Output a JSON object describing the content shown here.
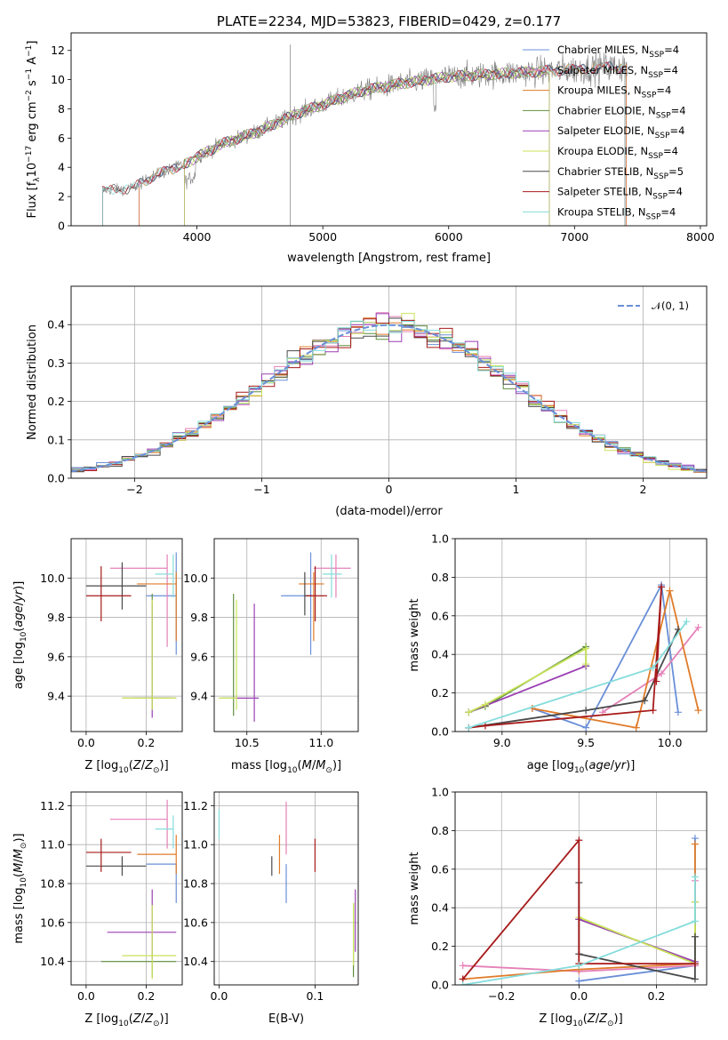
{
  "colors": {
    "Chabrier MILES": "#6a8fd8",
    "Salpeter MILES": "#e580b8",
    "Kroupa MILES": "#e07b28",
    "Chabrier ELODIE": "#5f8f3f",
    "Salpeter ELODIE": "#9a3fb3",
    "Kroupa ELODIE": "#c9e35a",
    "Chabrier STELIB": "#4a4a4a",
    "Salpeter STELIB": "#a71a1a",
    "Kroupa STELIB": "#86dcdc"
  },
  "chart_data": [
    {
      "id": "spectrum",
      "type": "line",
      "title": "PLATE=2234, MJD=53823, FIBERID=0429, z=0.177",
      "xlabel": "wavelength [Angstrom, rest frame]",
      "ylabel": "Flux [f_λ10^-17 erg cm^-2 s^-1 A^-1]",
      "xlim": [
        3000,
        8050
      ],
      "ylim": [
        0,
        13.2
      ],
      "xticks": [
        4000,
        5000,
        6000,
        7000,
        8000
      ],
      "yticks": [
        0,
        2,
        4,
        6,
        8,
        10,
        12
      ],
      "grid": false,
      "legend_position": "top-right",
      "data_color": "#7f7f7f",
      "data_range": [
        3250,
        7420
      ],
      "continuum": [
        [
          3250,
          2.4
        ],
        [
          3500,
          2.6
        ],
        [
          3650,
          3.4
        ],
        [
          3900,
          4.2
        ],
        [
          4000,
          4.7
        ],
        [
          4200,
          5.6
        ],
        [
          4500,
          6.5
        ],
        [
          4800,
          7.7
        ],
        [
          5000,
          8.3
        ],
        [
          5300,
          9.2
        ],
        [
          5600,
          9.7
        ],
        [
          6000,
          10.2
        ],
        [
          6400,
          10.4
        ],
        [
          7000,
          10.7
        ],
        [
          7400,
          10.9
        ]
      ],
      "legend": [
        {
          "name": "Chabrier MILES",
          "nssp": "4"
        },
        {
          "name": "Salpeter MILES",
          "nssp": "4"
        },
        {
          "name": "Kroupa MILES",
          "nssp": "4"
        },
        {
          "name": "Chabrier ELODIE",
          "nssp": "4"
        },
        {
          "name": "Salpeter ELODIE",
          "nssp": "4"
        },
        {
          "name": "Kroupa ELODIE",
          "nssp": "4"
        },
        {
          "name": "Chabrier STELIB",
          "nssp": "5"
        },
        {
          "name": "Salpeter STELIB",
          "nssp": "4"
        },
        {
          "name": "Kroupa STELIB",
          "nssp": "4"
        }
      ]
    },
    {
      "id": "residuals",
      "type": "line",
      "xlabel": "(data-model)/error",
      "ylabel": "Normed distribution",
      "xlim": [
        -2.5,
        2.5
      ],
      "ylim": [
        0,
        0.5
      ],
      "xticks": [
        -2,
        -1,
        0,
        1,
        2
      ],
      "yticks": [
        0.0,
        0.1,
        0.2,
        0.3,
        0.4
      ],
      "grid": true,
      "legend_position": "top-right",
      "gaussian_label": "𝒩(0, 1)",
      "gaussian_color": "#6a8fd8",
      "bin_width": 0.1
    },
    {
      "id": "age_vs_Z",
      "type": "scatter",
      "xlabel": "Z [log10(Z/Z⊙)]",
      "ylabel": "age [log10(age/yr)]",
      "xlim": [
        -0.05,
        0.32
      ],
      "ylim": [
        9.22,
        10.2
      ],
      "xticks": [
        0.0,
        0.2
      ],
      "yticks": [
        9.4,
        9.6,
        9.8,
        10.0
      ],
      "grid": true,
      "points": [
        {
          "series": "Chabrier MILES",
          "x": 0.3,
          "y": 9.91,
          "xerr": [
            0.1,
            0.0
          ],
          "yerr": [
            0.3,
            0.22
          ]
        },
        {
          "series": "Salpeter MILES",
          "x": 0.27,
          "y": 10.05,
          "xerr": [
            0.19,
            0.0
          ],
          "yerr": [
            0.4,
            0.07
          ]
        },
        {
          "series": "Kroupa MILES",
          "x": 0.3,
          "y": 9.97,
          "xerr": [
            0.13,
            0.0
          ],
          "yerr": [
            0.29,
            0.06
          ]
        },
        {
          "series": "Chabrier ELODIE",
          "x": 0.22,
          "y": 9.39,
          "xerr": [
            0.1,
            0.08
          ],
          "yerr": [
            0.06,
            0.53
          ]
        },
        {
          "series": "Salpeter ELODIE",
          "x": 0.22,
          "y": 9.39,
          "xerr": [
            0.06,
            0.06
          ],
          "yerr": [
            0.1,
            0.48
          ]
        },
        {
          "series": "Kroupa ELODIE",
          "x": 0.22,
          "y": 9.39,
          "xerr": [
            0.1,
            0.08
          ],
          "yerr": [
            0.06,
            0.5
          ]
        },
        {
          "series": "Chabrier STELIB",
          "x": 0.12,
          "y": 9.96,
          "xerr": [
            0.12,
            0.08
          ],
          "yerr": [
            0.12,
            0.12
          ]
        },
        {
          "series": "Salpeter STELIB",
          "x": 0.05,
          "y": 9.91,
          "xerr": [
            0.05,
            0.1
          ],
          "yerr": [
            0.13,
            0.15
          ]
        },
        {
          "series": "Kroupa STELIB",
          "x": 0.29,
          "y": 10.02,
          "xerr": [
            0.06,
            0.0
          ],
          "yerr": [
            0.12,
            0.1
          ]
        }
      ]
    },
    {
      "id": "age_vs_mass",
      "type": "scatter",
      "xlabel": "mass [log10(M/M⊙)]",
      "ylabel": "",
      "xlim": [
        10.28,
        11.25
      ],
      "ylim": [
        9.22,
        10.2
      ],
      "xticks": [
        10.5,
        11.0
      ],
      "yticks": [
        9.4,
        9.6,
        9.8,
        10.0
      ],
      "grid": true,
      "points": [
        {
          "series": "Chabrier MILES",
          "x": 10.93,
          "y": 9.91,
          "xerr": [
            0.2,
            0.0
          ],
          "yerr": [
            0.3,
            0.22
          ]
        },
        {
          "series": "Salpeter MILES",
          "x": 11.1,
          "y": 10.05,
          "xerr": [
            0.15,
            0.1
          ],
          "yerr": [
            0.15,
            0.07
          ]
        },
        {
          "series": "Kroupa MILES",
          "x": 10.95,
          "y": 9.97,
          "xerr": [
            0.1,
            0.07
          ],
          "yerr": [
            0.29,
            0.06
          ]
        },
        {
          "series": "Chabrier ELODIE",
          "x": 10.41,
          "y": 9.39,
          "xerr": [
            0.08,
            0.0
          ],
          "yerr": [
            0.09,
            0.53
          ]
        },
        {
          "series": "Salpeter ELODIE",
          "x": 10.55,
          "y": 9.39,
          "xerr": [
            0.14,
            0.03
          ],
          "yerr": [
            0.12,
            0.48
          ]
        },
        {
          "series": "Kroupa ELODIE",
          "x": 10.43,
          "y": 9.39,
          "xerr": [
            0.12,
            0.0
          ],
          "yerr": [
            0.06,
            0.5
          ]
        },
        {
          "series": "Chabrier STELIB",
          "x": 10.89,
          "y": 9.91,
          "xerr": [
            0.0,
            0.05
          ],
          "yerr": [
            0.1,
            0.12
          ]
        },
        {
          "series": "Salpeter STELIB",
          "x": 10.96,
          "y": 9.91,
          "xerr": [
            0.06,
            0.08
          ],
          "yerr": [
            0.13,
            0.15
          ]
        },
        {
          "series": "Kroupa STELIB",
          "x": 11.07,
          "y": 10.02,
          "xerr": [
            0.06,
            0.07
          ],
          "yerr": [
            0.12,
            0.1
          ]
        }
      ]
    },
    {
      "id": "massweight_vs_age",
      "type": "line",
      "xlabel": "age [log10(age/yr)]",
      "ylabel": "mass weight",
      "xlim": [
        8.72,
        10.22
      ],
      "ylim": [
        0,
        1.0
      ],
      "xticks": [
        9.0,
        9.5,
        10.0
      ],
      "yticks": [
        0.0,
        0.2,
        0.4,
        0.6,
        0.8,
        1.0
      ],
      "grid": true,
      "series": [
        {
          "name": "Chabrier MILES",
          "x": [
            9.18,
            9.5,
            9.95,
            10.05
          ],
          "y": [
            0.12,
            0.02,
            0.76,
            0.1
          ]
        },
        {
          "name": "Salpeter MILES",
          "x": [
            9.6,
            9.95,
            10.17
          ],
          "y": [
            0.1,
            0.3,
            0.54
          ]
        },
        {
          "name": "Kroupa MILES",
          "x": [
            9.18,
            9.8,
            10.0,
            10.17
          ],
          "y": [
            0.12,
            0.02,
            0.73,
            0.11
          ]
        },
        {
          "name": "Chabrier ELODIE",
          "x": [
            8.8,
            8.9,
            9.5,
            9.5
          ],
          "y": [
            0.1,
            0.13,
            0.44,
            0.34
          ]
        },
        {
          "name": "Salpeter ELODIE",
          "x": [
            8.8,
            9.5
          ],
          "y": [
            0.1,
            0.34
          ]
        },
        {
          "name": "Kroupa ELODIE",
          "x": [
            8.8,
            8.9,
            9.5,
            9.5
          ],
          "y": [
            0.1,
            0.14,
            0.43,
            0.35
          ]
        },
        {
          "name": "Chabrier STELIB",
          "x": [
            8.8,
            9.5,
            9.85,
            10.05
          ],
          "y": [
            0.02,
            0.11,
            0.16,
            0.53
          ]
        },
        {
          "name": "Salpeter STELIB",
          "x": [
            8.8,
            8.9,
            9.9,
            9.95,
            9.92
          ],
          "y": [
            0.02,
            0.03,
            0.11,
            0.75,
            0.26
          ]
        },
        {
          "name": "Kroupa STELIB",
          "x": [
            8.8,
            9.9,
            10.1
          ],
          "y": [
            0.02,
            0.33,
            0.57
          ]
        }
      ]
    },
    {
      "id": "mass_vs_Z",
      "type": "scatter",
      "xlabel": "Z [log10(Z/Z⊙)]",
      "ylabel": "mass [log10(M/M⊙)]",
      "xlim": [
        -0.05,
        0.32
      ],
      "ylim": [
        10.28,
        11.27
      ],
      "xticks": [
        0.0,
        0.2
      ],
      "yticks": [
        10.4,
        10.6,
        10.8,
        11.0,
        11.2
      ],
      "grid": true,
      "points": [
        {
          "series": "Chabrier MILES",
          "x": 0.3,
          "y": 10.9,
          "xerr": [
            0.1,
            0.0
          ],
          "yerr": [
            0.2,
            0.0
          ]
        },
        {
          "series": "Salpeter MILES",
          "x": 0.27,
          "y": 11.13,
          "xerr": [
            0.19,
            0.0
          ],
          "yerr": [
            0.15,
            0.1
          ]
        },
        {
          "series": "Kroupa MILES",
          "x": 0.3,
          "y": 10.95,
          "xerr": [
            0.13,
            0.0
          ],
          "yerr": [
            0.1,
            0.1
          ]
        },
        {
          "series": "Chabrier ELODIE",
          "x": 0.22,
          "y": 10.4,
          "xerr": [
            0.17,
            0.08
          ],
          "yerr": [
            0.08,
            0.0
          ]
        },
        {
          "series": "Salpeter ELODIE",
          "x": 0.22,
          "y": 10.55,
          "xerr": [
            0.15,
            0.08
          ],
          "yerr": [
            0.14,
            0.22
          ]
        },
        {
          "series": "Kroupa ELODIE",
          "x": 0.22,
          "y": 10.43,
          "xerr": [
            0.1,
            0.08
          ],
          "yerr": [
            0.12,
            0.26
          ]
        },
        {
          "series": "Chabrier STELIB",
          "x": 0.12,
          "y": 10.89,
          "xerr": [
            0.12,
            0.08
          ],
          "yerr": [
            0.05,
            0.05
          ]
        },
        {
          "series": "Salpeter STELIB",
          "x": 0.05,
          "y": 10.96,
          "xerr": [
            0.05,
            0.1
          ],
          "yerr": [
            0.1,
            0.07
          ]
        },
        {
          "series": "Kroupa STELIB",
          "x": 0.29,
          "y": 11.08,
          "xerr": [
            0.06,
            0.0
          ],
          "yerr": [
            0.1,
            0.07
          ]
        }
      ]
    },
    {
      "id": "mass_vs_ebv",
      "type": "scatter",
      "xlabel": "E(B-V)",
      "ylabel": "",
      "xlim": [
        -0.005,
        0.145
      ],
      "ylim": [
        10.28,
        11.27
      ],
      "xticks": [
        0.0,
        0.1
      ],
      "yticks": [
        10.4,
        10.6,
        10.8,
        11.0,
        11.2
      ],
      "grid": true,
      "points": [
        {
          "series": "Chabrier MILES",
          "x": 0.07,
          "y": 10.9,
          "xerr": [
            0,
            0
          ],
          "yerr": [
            0.2,
            0.0
          ]
        },
        {
          "series": "Salpeter MILES",
          "x": 0.07,
          "y": 11.1,
          "xerr": [
            0,
            0
          ],
          "yerr": [
            0.15,
            0.12
          ]
        },
        {
          "series": "Kroupa MILES",
          "x": 0.063,
          "y": 10.95,
          "xerr": [
            0,
            0
          ],
          "yerr": [
            0.1,
            0.1
          ]
        },
        {
          "series": "Chabrier ELODIE",
          "x": 0.14,
          "y": 10.5,
          "xerr": [
            0,
            0
          ],
          "yerr": [
            0.18,
            0.2
          ]
        },
        {
          "series": "Salpeter ELODIE",
          "x": 0.142,
          "y": 10.6,
          "xerr": [
            0,
            0
          ],
          "yerr": [
            0.15,
            0.17
          ]
        },
        {
          "series": "Kroupa ELODIE",
          "x": 0.14,
          "y": 10.5,
          "xerr": [
            0,
            0
          ],
          "yerr": [
            0.12,
            0.2
          ]
        },
        {
          "series": "Chabrier STELIB",
          "x": 0.055,
          "y": 10.89,
          "xerr": [
            0,
            0
          ],
          "yerr": [
            0.05,
            0.05
          ]
        },
        {
          "series": "Salpeter STELIB",
          "x": 0.1,
          "y": 10.96,
          "xerr": [
            0,
            0
          ],
          "yerr": [
            0.1,
            0.07
          ]
        },
        {
          "series": "Kroupa STELIB",
          "x": 0.0,
          "y": 11.08,
          "xerr": [
            0,
            0
          ],
          "yerr": [
            0.05,
            0.1
          ]
        }
      ]
    },
    {
      "id": "massweight_vs_Z",
      "type": "line",
      "xlabel": "Z [log10(Z/Z⊙)]",
      "ylabel": "mass weight",
      "xlim": [
        -0.32,
        0.33
      ],
      "ylim": [
        0,
        1.0
      ],
      "xticks": [
        -0.2,
        0.0,
        0.2
      ],
      "yticks": [
        0.0,
        0.2,
        0.4,
        0.6,
        0.8,
        1.0
      ],
      "grid": true,
      "series": [
        {
          "name": "Chabrier MILES",
          "x": [
            0.0,
            0.3,
            0.3,
            0.3
          ],
          "y": [
            0.02,
            0.1,
            0.76,
            0.12
          ]
        },
        {
          "name": "Salpeter MILES",
          "x": [
            -0.3,
            0.0,
            0.3,
            0.3
          ],
          "y": [
            0.1,
            0.07,
            0.1,
            0.54
          ]
        },
        {
          "name": "Kroupa MILES",
          "x": [
            -0.3,
            0.0,
            0.3,
            0.3
          ],
          "y": [
            0.03,
            0.08,
            0.11,
            0.73
          ]
        },
        {
          "name": "Chabrier ELODIE",
          "x": [
            0.0,
            0.3,
            0.3
          ],
          "y": [
            0.34,
            0.12,
            0.43
          ]
        },
        {
          "name": "Salpeter ELODIE",
          "x": [
            0.0,
            0.3
          ],
          "y": [
            0.34,
            0.12
          ]
        },
        {
          "name": "Kroupa ELODIE",
          "x": [
            0.0,
            0.3,
            0.3
          ],
          "y": [
            0.35,
            0.11,
            0.43
          ]
        },
        {
          "name": "Chabrier STELIB",
          "x": [
            0.0,
            0.0,
            0.3,
            0.3
          ],
          "y": [
            0.53,
            0.16,
            0.03,
            0.25
          ]
        },
        {
          "name": "Salpeter STELIB",
          "x": [
            -0.3,
            0.0,
            0.0,
            0.3
          ],
          "y": [
            0.03,
            0.75,
            0.11,
            0.11
          ]
        },
        {
          "name": "Kroupa STELIB",
          "x": [
            -0.3,
            0.0,
            0.3,
            0.3
          ],
          "y": [
            0.0,
            0.1,
            0.33,
            0.56
          ]
        }
      ]
    }
  ]
}
